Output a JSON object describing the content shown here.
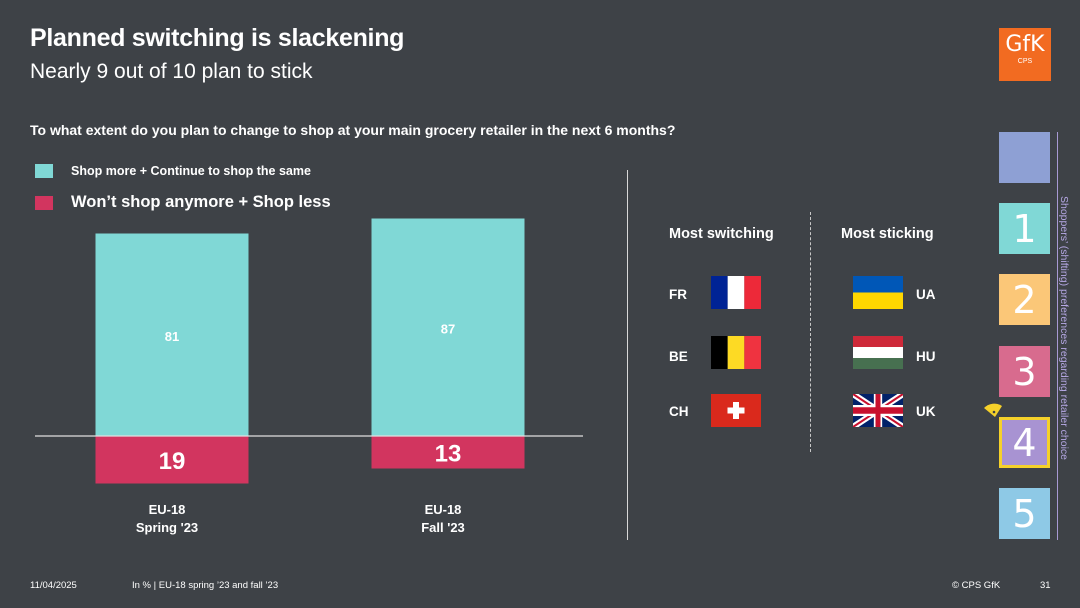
{
  "header": {
    "title": "Planned switching is slackening",
    "subtitle": "Nearly 9 out of 10 plan to stick",
    "question": "To what extent do you plan to change to shop at your main grocery retailer in the next 6 months?"
  },
  "colors": {
    "background": "#3e4247",
    "stick": "#80d8d6",
    "switch": "#d2355f",
    "logo": "#f26b21",
    "nav_0": "#8ea0d4",
    "nav_1": "#80d8d6",
    "nav_2": "#fbc778",
    "nav_3": "#d86b8e",
    "nav_4": "#a893d2",
    "nav_4_border": "#f5d12a",
    "nav_5": "#8ec9e6"
  },
  "chart_data": {
    "type": "bar",
    "stacked": true,
    "baseline": "diverging",
    "categories": [
      "EU-18 Spring '23",
      "EU-18 Fall '23"
    ],
    "category_lines": [
      [
        "EU-18",
        "Spring '23"
      ],
      [
        "EU-18",
        "Fall '23"
      ]
    ],
    "series": [
      {
        "name": "Shop more + Continue to shop the same",
        "values": [
          81,
          87
        ],
        "direction": "up"
      },
      {
        "name": "Won’t shop anymore + Shop less",
        "values": [
          19,
          13
        ],
        "direction": "down"
      }
    ],
    "unit": "%",
    "legend_position": "top-left"
  },
  "countries": {
    "switching_title": "Most switching",
    "sticking_title": "Most sticking",
    "switching": [
      {
        "code": "FR",
        "flag": "france-flag"
      },
      {
        "code": "BE",
        "flag": "belgium-flag"
      },
      {
        "code": "CH",
        "flag": "switzerland-flag"
      }
    ],
    "sticking": [
      {
        "code": "UA",
        "flag": "ukraine-flag"
      },
      {
        "code": "HU",
        "flag": "hungary-flag"
      },
      {
        "code": "UK",
        "flag": "uk-flag"
      }
    ]
  },
  "logo": {
    "main": "GfK",
    "sub": "CPS"
  },
  "nav": {
    "items": [
      "1",
      "2",
      "3",
      "4",
      "5"
    ],
    "active": "4",
    "side_label": "Shoppers’ (shifting) preferences regarding retailer choice"
  },
  "footer": {
    "date": "11/04/2025",
    "note": "In % | EU-18 spring ’23 and fall ’23",
    "copyright": "© CPS GfK",
    "page": "31"
  }
}
